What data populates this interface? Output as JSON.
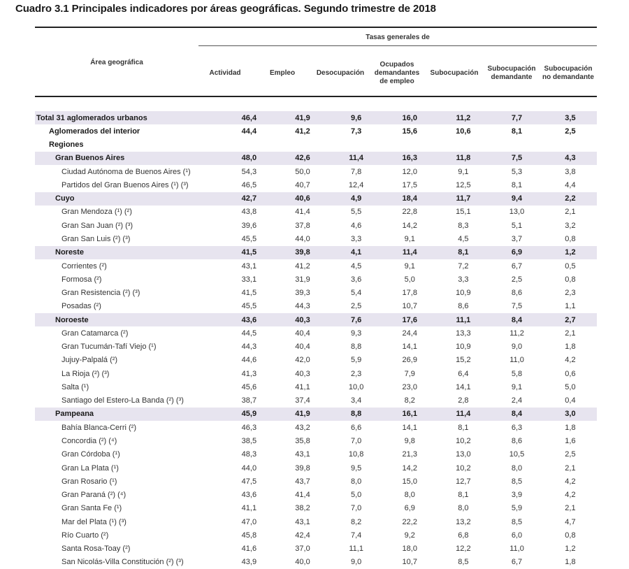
{
  "title": "Cuadro 3.1  Principales indicadores por áreas geográficas. Segundo trimestre de 2018",
  "header": {
    "area_label": "Área geográfica",
    "group_label": "Tasas generales de",
    "columns": [
      "Actividad",
      "Empleo",
      "Desocupación",
      "Ocupados demandantes de empleo",
      "Subocupación",
      "Subocupación demandante",
      "Subocupación no demandante"
    ]
  },
  "rows": [
    {
      "label": "Total 31 aglomerados urbanos",
      "values": [
        "46,4",
        "41,9",
        "9,6",
        "16,0",
        "11,2",
        "7,7",
        "3,5"
      ],
      "style": "bold-shade",
      "level": 0
    },
    {
      "label": "Aglomerados del interior",
      "values": [
        "44,4",
        "41,2",
        "7,3",
        "15,6",
        "10,6",
        "8,1",
        "2,5"
      ],
      "style": "bold",
      "level": 1
    },
    {
      "label": "Regiones",
      "values": [
        "",
        "",
        "",
        "",
        "",
        "",
        ""
      ],
      "style": "bold",
      "level": 1
    },
    {
      "label": "Gran Buenos Aires",
      "values": [
        "48,0",
        "42,6",
        "11,4",
        "16,3",
        "11,8",
        "7,5",
        "4,3"
      ],
      "style": "bold-shade",
      "level": 2
    },
    {
      "label": "Ciudad Autónoma de Buenos Aires (¹)",
      "values": [
        "54,3",
        "50,0",
        "7,8",
        "12,0",
        "9,1",
        "5,3",
        "3,8"
      ],
      "style": "normal",
      "level": 3
    },
    {
      "label": "Partidos del Gran Buenos Aires (¹) (³)",
      "values": [
        "46,5",
        "40,7",
        "12,4",
        "17,5",
        "12,5",
        "8,1",
        "4,4"
      ],
      "style": "normal",
      "level": 3
    },
    {
      "label": "Cuyo",
      "values": [
        "42,7",
        "40,6",
        "4,9",
        "18,4",
        "11,7",
        "9,4",
        "2,2"
      ],
      "style": "bold-shade",
      "level": 2
    },
    {
      "label": "Gran Mendoza (¹) (²)",
      "values": [
        "43,8",
        "41,4",
        "5,5",
        "22,8",
        "15,1",
        "13,0",
        "2,1"
      ],
      "style": "normal",
      "level": 3
    },
    {
      "label": "Gran San Juan (²) (³)",
      "values": [
        "39,6",
        "37,8",
        "4,6",
        "14,2",
        "8,3",
        "5,1",
        "3,2"
      ],
      "style": "normal",
      "level": 3
    },
    {
      "label": "Gran San Luis (²) (³)",
      "values": [
        "45,5",
        "44,0",
        "3,3",
        "9,1",
        "4,5",
        "3,7",
        "0,8"
      ],
      "style": "normal",
      "level": 3
    },
    {
      "label": "Noreste",
      "values": [
        "41,5",
        "39,8",
        "4,1",
        "11,4",
        "8,1",
        "6,9",
        "1,2"
      ],
      "style": "bold-shade",
      "level": 2
    },
    {
      "label": "Corrientes (²)",
      "values": [
        "43,1",
        "41,2",
        "4,5",
        "9,1",
        "7,2",
        "6,7",
        "0,5"
      ],
      "style": "normal",
      "level": 3
    },
    {
      "label": "Formosa (²)",
      "values": [
        "33,1",
        "31,9",
        "3,6",
        "5,0",
        "3,3",
        "2,5",
        "0,8"
      ],
      "style": "normal",
      "level": 3
    },
    {
      "label": "Gran Resistencia (²) (³)",
      "values": [
        "41,5",
        "39,3",
        "5,4",
        "17,8",
        "10,9",
        "8,6",
        "2,3"
      ],
      "style": "normal",
      "level": 3
    },
    {
      "label": "Posadas (²)",
      "values": [
        "45,5",
        "44,3",
        "2,5",
        "10,7",
        "8,6",
        "7,5",
        "1,1"
      ],
      "style": "normal",
      "level": 3
    },
    {
      "label": "Noroeste",
      "values": [
        "43,6",
        "40,3",
        "7,6",
        "17,6",
        "11,1",
        "8,4",
        "2,7"
      ],
      "style": "bold-shade",
      "level": 2
    },
    {
      "label": "Gran Catamarca (²)",
      "values": [
        "44,5",
        "40,4",
        "9,3",
        "24,4",
        "13,3",
        "11,2",
        "2,1"
      ],
      "style": "normal",
      "level": 3
    },
    {
      "label": "Gran Tucumán-Tafí Viejo (¹)",
      "values": [
        "44,3",
        "40,4",
        "8,8",
        "14,1",
        "10,9",
        "9,0",
        "1,8"
      ],
      "style": "normal",
      "level": 3
    },
    {
      "label": "Jujuy-Palpalá (²)",
      "values": [
        "44,6",
        "42,0",
        "5,9",
        "26,9",
        "15,2",
        "11,0",
        "4,2"
      ],
      "style": "normal",
      "level": 3
    },
    {
      "label": "La Rioja (²) (³)",
      "values": [
        "41,3",
        "40,3",
        "2,3",
        "7,9",
        "6,4",
        "5,8",
        "0,6"
      ],
      "style": "normal",
      "level": 3
    },
    {
      "label": "Salta (¹)",
      "values": [
        "45,6",
        "41,1",
        "10,0",
        "23,0",
        "14,1",
        "9,1",
        "5,0"
      ],
      "style": "normal",
      "level": 3
    },
    {
      "label": "Santiago del Estero-La Banda (²) (³)",
      "values": [
        "38,7",
        "37,4",
        "3,4",
        "8,2",
        "2,8",
        "2,4",
        "0,4"
      ],
      "style": "normal",
      "level": 3
    },
    {
      "label": "Pampeana",
      "values": [
        "45,9",
        "41,9",
        "8,8",
        "16,1",
        "11,4",
        "8,4",
        "3,0"
      ],
      "style": "bold-shade",
      "level": 2
    },
    {
      "label": "Bahía Blanca-Cerri (²)",
      "values": [
        "46,3",
        "43,2",
        "6,6",
        "14,1",
        "8,1",
        "6,3",
        "1,8"
      ],
      "style": "normal",
      "level": 3
    },
    {
      "label": "Concordia (²) (⁴)",
      "values": [
        "38,5",
        "35,8",
        "7,0",
        "9,8",
        "10,2",
        "8,6",
        "1,6"
      ],
      "style": "normal",
      "level": 3
    },
    {
      "label": "Gran Córdoba (¹)",
      "values": [
        "48,3",
        "43,1",
        "10,8",
        "21,3",
        "13,0",
        "10,5",
        "2,5"
      ],
      "style": "normal",
      "level": 3
    },
    {
      "label": "Gran La Plata (¹)",
      "values": [
        "44,0",
        "39,8",
        "9,5",
        "14,2",
        "10,2",
        "8,0",
        "2,1"
      ],
      "style": "normal",
      "level": 3
    },
    {
      "label": "Gran Rosario (¹)",
      "values": [
        "47,5",
        "43,7",
        "8,0",
        "15,0",
        "12,7",
        "8,5",
        "4,2"
      ],
      "style": "normal",
      "level": 3
    },
    {
      "label": "Gran Paraná (²) (⁴)",
      "values": [
        "43,6",
        "41,4",
        "5,0",
        "8,0",
        "8,1",
        "3,9",
        "4,2"
      ],
      "style": "normal",
      "level": 3
    },
    {
      "label": "Gran Santa Fe (¹)",
      "values": [
        "41,1",
        "38,2",
        "7,0",
        "6,9",
        "8,0",
        "5,9",
        "2,1"
      ],
      "style": "normal",
      "level": 3
    },
    {
      "label": "Mar del Plata (¹) (³)",
      "values": [
        "47,0",
        "43,1",
        "8,2",
        "22,2",
        "13,2",
        "8,5",
        "4,7"
      ],
      "style": "normal",
      "level": 3
    },
    {
      "label": "Río Cuarto (²)",
      "values": [
        "45,8",
        "42,4",
        "7,4",
        "9,2",
        "6,8",
        "6,0",
        "0,8"
      ],
      "style": "normal",
      "level": 3
    },
    {
      "label": "Santa Rosa-Toay (²)",
      "values": [
        "41,6",
        "37,0",
        "11,1",
        "18,0",
        "12,2",
        "11,0",
        "1,2"
      ],
      "style": "normal",
      "level": 3
    },
    {
      "label": "San Nicolás-Villa Constitución (²) (³)",
      "values": [
        "43,9",
        "40,0",
        "9,0",
        "10,7",
        "8,5",
        "6,7",
        "1,8"
      ],
      "style": "normal",
      "level": 3
    }
  ]
}
